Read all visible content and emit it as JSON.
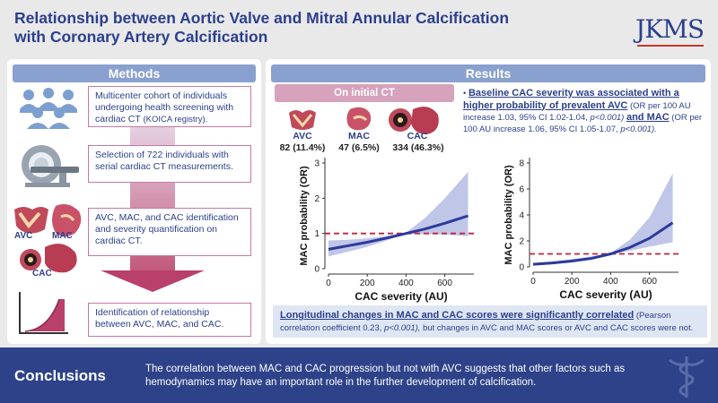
{
  "header": {
    "title_line1": "Relationship between Aortic Valve and Mitral Annular Calcification",
    "title_line2": "with Coronary Artery Calcification",
    "logo": "JKMS"
  },
  "methods": {
    "heading": "Methods",
    "step1_main": "Multicenter cohort of individuals undergoing health screening with cardiac CT",
    "step1_small": "(KOICA registry).",
    "step2": "Selection of 722 individuals with serial cardiac CT measurements.",
    "step3": "AVC, MAC, and CAC identification and severity quantification on cardiac CT.",
    "step4": "Identification of relationship between AVC, MAC, and CAC.",
    "icon_labels": {
      "avc": "AVC",
      "mac": "MAC",
      "cac": "CAC"
    }
  },
  "results": {
    "heading": "Results",
    "initial_ct": "On initial CT",
    "valves": [
      {
        "label": "AVC",
        "count": "82 (11.4%)"
      },
      {
        "label": "MAC",
        "count": "47 (6.5%)"
      },
      {
        "label": "CAC",
        "count": "334 (46.3%)"
      }
    ],
    "bullet": {
      "bold1": "Baseline CAC severity was associated with a higher probability of prevalent AVC",
      "text1": "(OR per 100 AU increase 1.03, 95% CI 1.02-1.04,",
      "p1": "p<0.001)",
      "bold2": "and MAC",
      "text2": "(OR per 100 AU increase 1.06, 95% CI 1.05-1.07,",
      "p2": "p<0.001)."
    },
    "longitudinal": {
      "bold": "Longitudinal changes in MAC and CAC scores were significantly correlated",
      "text1": "(Pearson correlation coefficient 0.23,",
      "p": "p<0.001),",
      "text2": "but changes in AVC and MAC scores or AVC and CAC scores were not."
    }
  },
  "chart_data": [
    {
      "type": "line",
      "title": "",
      "xlabel": "CAC severity (AU)",
      "ylabel": "MAC probability (OR)",
      "xlim": [
        0,
        750
      ],
      "ylim": [
        0,
        3
      ],
      "xticks": [
        0,
        200,
        400,
        600
      ],
      "yticks": [
        0,
        1,
        2,
        3
      ],
      "reference_line": 1,
      "series": [
        {
          "name": "estimate",
          "x": [
            0,
            100,
            200,
            300,
            400,
            500,
            600,
            720
          ],
          "y": [
            0.55,
            0.65,
            0.75,
            0.87,
            1.0,
            1.13,
            1.29,
            1.5
          ]
        },
        {
          "name": "ci_upper",
          "x": [
            0,
            100,
            200,
            300,
            400,
            500,
            600,
            720
          ],
          "y": [
            0.8,
            0.82,
            0.86,
            0.93,
            1.02,
            1.45,
            2.0,
            2.75
          ]
        },
        {
          "name": "ci_lower",
          "x": [
            0,
            100,
            200,
            300,
            400,
            500,
            600,
            720
          ],
          "y": [
            0.35,
            0.48,
            0.62,
            0.8,
            0.98,
            0.98,
            0.97,
            0.92
          ]
        }
      ]
    },
    {
      "type": "line",
      "title": "",
      "xlabel": "CAC severity (AU)",
      "ylabel": "MAC probability (OR)",
      "xlim": [
        0,
        750
      ],
      "ylim": [
        0,
        8
      ],
      "xticks": [
        0,
        200,
        400,
        600
      ],
      "yticks": [
        0,
        2,
        4,
        6,
        8
      ],
      "reference_line": 1,
      "series": [
        {
          "name": "estimate",
          "x": [
            0,
            100,
            200,
            300,
            400,
            500,
            600,
            720
          ],
          "y": [
            0.2,
            0.3,
            0.45,
            0.65,
            1.0,
            1.5,
            2.2,
            3.4
          ]
        },
        {
          "name": "ci_upper",
          "x": [
            0,
            100,
            200,
            300,
            400,
            500,
            600,
            720
          ],
          "y": [
            0.3,
            0.42,
            0.6,
            0.8,
            1.05,
            2.1,
            3.8,
            7.2
          ]
        },
        {
          "name": "ci_lower",
          "x": [
            0,
            100,
            200,
            300,
            400,
            500,
            600,
            720
          ],
          "y": [
            0.1,
            0.2,
            0.35,
            0.55,
            0.95,
            1.25,
            1.55,
            1.9
          ]
        }
      ]
    }
  ],
  "conclusions": {
    "heading": "Conclusions",
    "text": "The correlation between MAC and CAC progression but not with AVC suggests that other factors such as hemodynamics may have an important role in the further development of calcification."
  },
  "colors": {
    "navy": "#2b3f8c",
    "band": "#8d98d6",
    "line": "#2b3a9a",
    "ref": "#c0243c",
    "pink": "#d7a2bb"
  }
}
